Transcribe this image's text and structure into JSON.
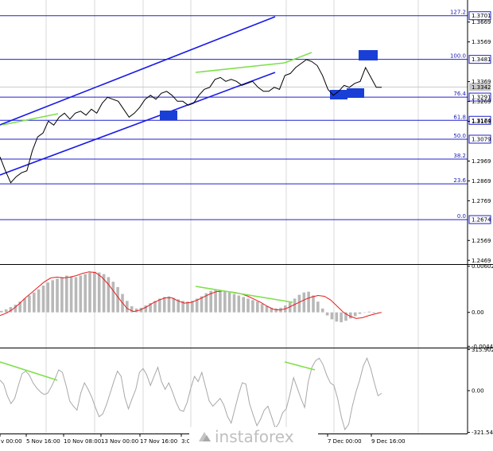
{
  "chart_data": [
    {
      "type": "line",
      "panel": "price",
      "y_ticks": [
        "1.3669",
        "1.3569",
        "1.3369",
        "1.3269",
        "1.3169",
        "1.2969",
        "1.2869",
        "1.2769",
        "1.2569",
        "1.2469"
      ],
      "fib_levels": [
        {
          "label": "127.2",
          "price": "1.3701"
        },
        {
          "label": "100.0",
          "price": "1.3481"
        },
        {
          "label": "76.4",
          "price": "1.3291"
        },
        {
          "label": "61.8",
          "price": "1.3174"
        },
        {
          "label": "50.0",
          "price": "1.3079"
        },
        {
          "label": "38.2",
          "price": ""
        },
        {
          "label": "23.6",
          "price": ""
        },
        {
          "label": "0.0",
          "price": "1.2674"
        }
      ],
      "current_price": "1.3342",
      "ylim": [
        1.245,
        1.378
      ],
      "grid": true,
      "closes": [
        1.299,
        1.292,
        1.286,
        1.289,
        1.291,
        1.292,
        1.302,
        1.309,
        1.311,
        1.317,
        1.315,
        1.319,
        1.321,
        1.318,
        1.321,
        1.322,
        1.32,
        1.323,
        1.321,
        1.326,
        1.329,
        1.328,
        1.327,
        1.323,
        1.319,
        1.321,
        1.324,
        1.328,
        1.33,
        1.328,
        1.331,
        1.332,
        1.33,
        1.327,
        1.327,
        1.325,
        1.326,
        1.33,
        1.333,
        1.334,
        1.338,
        1.339,
        1.337,
        1.338,
        1.337,
        1.335,
        1.336,
        1.337,
        1.334,
        1.332,
        1.332,
        1.334,
        1.333,
        1.34,
        1.341,
        1.344,
        1.346,
        1.348,
        1.347,
        1.345,
        1.34,
        1.333,
        1.33,
        1.332,
        1.335,
        1.334,
        1.336,
        1.337,
        1.344,
        1.339,
        1.334,
        1.334
      ]
    },
    {
      "type": "bar",
      "panel": "macd",
      "y_ticks": [
        "0.00602",
        "0.00",
        "-0.00443"
      ],
      "ylim": [
        -0.0046,
        0.0062
      ],
      "histogram": [
        0.0002,
        0.0004,
        0.0007,
        0.001,
        0.0014,
        0.0018,
        0.0022,
        0.0026,
        0.003,
        0.0035,
        0.0039,
        0.0042,
        0.0044,
        0.0046,
        0.0048,
        0.0047,
        0.0046,
        0.0048,
        0.005,
        0.0052,
        0.0053,
        0.0052,
        0.005,
        0.0046,
        0.004,
        0.0033,
        0.0024,
        0.0015,
        0.0008,
        0.0005,
        0.0006,
        0.0009,
        0.0012,
        0.0015,
        0.0018,
        0.002,
        0.0021,
        0.0019,
        0.0017,
        0.0015,
        0.0014,
        0.0015,
        0.0018,
        0.0021,
        0.0025,
        0.0028,
        0.0029,
        0.0029,
        0.0028,
        0.0026,
        0.0024,
        0.0022,
        0.002,
        0.0018,
        0.0016,
        0.0014,
        0.0011,
        0.0008,
        0.0006,
        0.0005,
        0.0006,
        0.0009,
        0.0013,
        0.0018,
        0.0023,
        0.0026,
        0.0027,
        0.0022,
        0.0014,
        0.0005,
        -0.0004,
        -0.0009,
        -0.0012,
        -0.0013,
        -0.0011,
        -0.0008,
        -0.0005,
        -0.0002,
        0.0,
        0.0001,
        -0.0001,
        0.0
      ],
      "signal": [
        -0.0004,
        -0.0001,
        0.0004,
        0.0011,
        0.0019,
        0.0026,
        0.0033,
        0.004,
        0.0045,
        0.0046,
        0.0045,
        0.0046,
        0.0048,
        0.0051,
        0.0053,
        0.0052,
        0.0046,
        0.0037,
        0.0026,
        0.0015,
        0.0005,
        0.0001,
        0.0003,
        0.0007,
        0.0012,
        0.0016,
        0.0019,
        0.0019,
        0.0015,
        0.0012,
        0.0013,
        0.0016,
        0.002,
        0.0024,
        0.0027,
        0.0028,
        0.0027,
        0.0026,
        0.0024,
        0.0021,
        0.0017,
        0.0013,
        0.0008,
        0.0004,
        0.0003,
        0.0005,
        0.0009,
        0.0013,
        0.0017,
        0.002,
        0.0022,
        0.0021,
        0.0016,
        0.0008,
        0.0,
        -0.0005,
        -0.0008,
        -0.0007,
        -0.0004,
        -0.0002,
        0.0
      ]
    },
    {
      "type": "line",
      "panel": "oscillator",
      "y_ticks": [
        "315.9023",
        "0.00",
        "-321.5477"
      ],
      "ylim": [
        -330,
        325
      ],
      "values": [
        80,
        50,
        -40,
        -100,
        -60,
        40,
        130,
        150,
        120,
        60,
        20,
        -10,
        -30,
        -20,
        30,
        90,
        160,
        140,
        40,
        -80,
        -120,
        -150,
        -20,
        60,
        10,
        -50,
        -130,
        -200,
        -180,
        -110,
        -20,
        70,
        150,
        110,
        -50,
        -140,
        -60,
        10,
        140,
        170,
        120,
        40,
        110,
        180,
        70,
        10,
        60,
        -10,
        -90,
        -150,
        -160,
        -90,
        20,
        110,
        70,
        140,
        30,
        -80,
        -120,
        -90,
        -60,
        -110,
        -200,
        -250,
        -140,
        -30,
        60,
        50,
        -100,
        -190,
        -270,
        -220,
        -150,
        -120,
        -200,
        -290,
        -250,
        -170,
        -140,
        -30,
        100,
        20,
        -60,
        -130,
        70,
        180,
        230,
        250,
        200,
        120,
        60,
        40,
        -60,
        -200,
        -300,
        -260,
        -120,
        -10,
        80,
        190,
        250,
        170,
        60,
        -40,
        -20
      ]
    },
    {
      "type": "line",
      "panel": "time-axis",
      "x_ticks": [
        "v 00:00",
        "5 Nov 16:00",
        "10 Nov 08:00",
        "13 Nov 00:00",
        "17 Nov 16:00",
        "3:00",
        "7 Dec 00:00",
        "9 Dec 16:00"
      ]
    }
  ],
  "watermark": {
    "text": "instaforex",
    "icon": "instaforex-logo-icon"
  },
  "colors": {
    "channel": "#1a1ae6",
    "levels": "#2020d0",
    "divergence": "#7ee04a",
    "signal": "#e81c1c",
    "histogram": "#b8b8b8",
    "price_line": "#000000",
    "osc_line": "#a8a8a8",
    "marker": "#1a3fd6",
    "current_price_bg": "#c8c8c8"
  }
}
